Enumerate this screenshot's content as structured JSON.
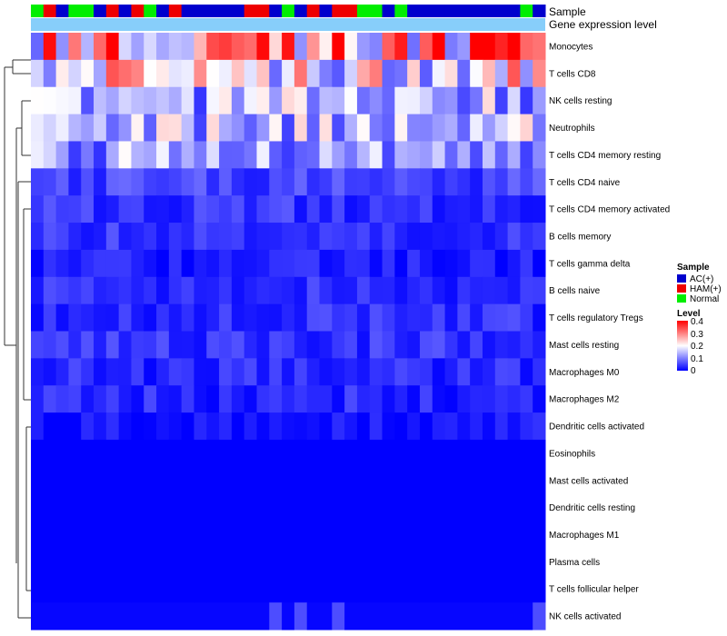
{
  "chart_data": {
    "type": "heatmap",
    "title": "",
    "annotation_labels": {
      "sample": "Sample",
      "expression": "Gene expression level"
    },
    "sample_groups": [
      "Normal",
      "HAM(+)",
      "AC(+)",
      "Normal",
      "Normal",
      "AC(+)",
      "HAM(+)",
      "AC(+)",
      "HAM(+)",
      "Normal",
      "AC(+)",
      "HAM(+)",
      "AC(+)",
      "AC(+)",
      "AC(+)",
      "AC(+)",
      "AC(+)",
      "HAM(+)",
      "HAM(+)",
      "AC(+)",
      "Normal",
      "AC(+)",
      "HAM(+)",
      "AC(+)",
      "HAM(+)",
      "HAM(+)",
      "Normal",
      "Normal",
      "AC(+)",
      "Normal",
      "AC(+)",
      "AC(+)",
      "AC(+)",
      "AC(+)",
      "AC(+)",
      "AC(+)",
      "AC(+)",
      "AC(+)",
      "AC(+)",
      "Normal",
      "AC(+)"
    ],
    "rows": [
      "Monocytes",
      "T cells CD8",
      "NK cells resting",
      "Neutrophils",
      "T cells CD4 memory resting",
      "T cells CD4 naive",
      "T cells CD4 memory activated",
      "B cells memory",
      "T cells gamma delta",
      "B cells naive",
      "T cells regulatory  Tregs",
      "Mast cells resting",
      "Macrophages M0",
      "Macrophages M2",
      "Dendritic cells activated",
      "Eosinophils",
      "Mast cells activated",
      "Dendritic cells resting",
      "Macrophages M1",
      "Plasma cells",
      "T cells follicular helper",
      "NK cells activated"
    ],
    "row_base_values": [
      0.27,
      0.22,
      0.14,
      0.14,
      0.12,
      0.05,
      0.04,
      0.04,
      0.02,
      0.035,
      0.035,
      0.04,
      0.03,
      0.03,
      0.01,
      0.0,
      0.0,
      0.0,
      0.0,
      0.0,
      0.0,
      0.003
    ],
    "color_scale": {
      "min": 0,
      "mid": 0.2,
      "max": 0.4,
      "low": "#0000FF",
      "middle": "#FFFFFF",
      "high": "#FF0000"
    },
    "legend": {
      "sample_title": "Sample",
      "sample_items": [
        {
          "label": "AC(+)",
          "color": "#0000CD"
        },
        {
          "label": "HAM(+)",
          "color": "#EE0000"
        },
        {
          "label": "Normal",
          "color": "#00EE00"
        }
      ],
      "level_title": "Level",
      "level_ticks": [
        "0.4",
        "0.3",
        "0.2",
        "0.1",
        "0"
      ],
      "placement": "right"
    }
  }
}
